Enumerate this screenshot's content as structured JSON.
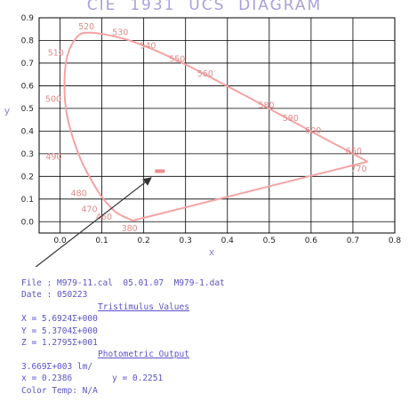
{
  "title": "CIE  1931  UCS  DIAGRAM",
  "colors": {
    "title": "#a9a0d8",
    "curve": "#f4a3a3",
    "wavelength_labels": "#e28a8a",
    "marker": "#f08a8a",
    "info_text": "#5a52c8",
    "axis_letters": "#8c84d6",
    "grid": "#000000",
    "arrow": "#333333"
  },
  "chart_data": {
    "type": "line",
    "title": "CIE  1931  UCS  DIAGRAM",
    "xlabel": "x",
    "ylabel": "y",
    "xlim": [
      -0.05,
      0.8
    ],
    "ylim": [
      -0.05,
      0.9
    ],
    "grid": true,
    "x_ticks": [
      "0.0",
      "0.1",
      "0.2",
      "0.3",
      "0.4",
      "0.5",
      "0.6",
      "0.7",
      "0.8"
    ],
    "y_ticks": [
      "0.0",
      "0.1",
      "0.2",
      "0.3",
      "0.4",
      "0.5",
      "0.6",
      "0.7",
      "0.8",
      "0.9"
    ],
    "spectral_locus": [
      {
        "x": 0.174,
        "y": 0.005
      },
      {
        "x": 0.144,
        "y": 0.03
      },
      {
        "x": 0.124,
        "y": 0.058
      },
      {
        "x": 0.091,
        "y": 0.133
      },
      {
        "x": 0.045,
        "y": 0.295
      },
      {
        "x": 0.014,
        "y": 0.5
      },
      {
        "x": 0.014,
        "y": 0.7
      },
      {
        "x": 0.039,
        "y": 0.812
      },
      {
        "x": 0.074,
        "y": 0.834
      },
      {
        "x": 0.155,
        "y": 0.806
      },
      {
        "x": 0.23,
        "y": 0.754
      },
      {
        "x": 0.302,
        "y": 0.692
      },
      {
        "x": 0.373,
        "y": 0.624
      },
      {
        "x": 0.444,
        "y": 0.555
      },
      {
        "x": 0.513,
        "y": 0.486
      },
      {
        "x": 0.575,
        "y": 0.424
      },
      {
        "x": 0.627,
        "y": 0.372
      },
      {
        "x": 0.666,
        "y": 0.334
      },
      {
        "x": 0.692,
        "y": 0.308
      },
      {
        "x": 0.735,
        "y": 0.265
      }
    ],
    "wavelength_labels": [
      {
        "text": "380",
        "x": 0.166,
        "y": -0.03
      },
      {
        "text": "460",
        "x": 0.105,
        "y": 0.02
      },
      {
        "text": "470",
        "x": 0.07,
        "y": 0.055
      },
      {
        "text": "480",
        "x": 0.045,
        "y": 0.125
      },
      {
        "text": "490",
        "x": -0.015,
        "y": 0.285
      },
      {
        "text": "500",
        "x": -0.016,
        "y": 0.54
      },
      {
        "text": "510",
        "x": -0.01,
        "y": 0.745
      },
      {
        "text": "520",
        "x": 0.063,
        "y": 0.86
      },
      {
        "text": "530",
        "x": 0.144,
        "y": 0.835
      },
      {
        "text": "540",
        "x": 0.21,
        "y": 0.776
      },
      {
        "text": "550",
        "x": 0.28,
        "y": 0.718
      },
      {
        "text": "560",
        "x": 0.347,
        "y": 0.652
      },
      {
        "text": "580",
        "x": 0.493,
        "y": 0.513
      },
      {
        "text": "590",
        "x": 0.551,
        "y": 0.457
      },
      {
        "text": "600",
        "x": 0.605,
        "y": 0.401
      },
      {
        "text": "650",
        "x": 0.702,
        "y": 0.312
      },
      {
        "text": "770",
        "x": 0.714,
        "y": 0.232
      }
    ],
    "measured_point": {
      "x": 0.2386,
      "y": 0.2251
    }
  },
  "info": {
    "file_line": "File : M979-11.cal  05.01.07  M979-1.dat",
    "date_line": "Date : 050223",
    "tristimulus_header": "Tristimulus Values",
    "X": "X = 5.6924Σ+000",
    "Y": "Y = 5.3704Σ+000",
    "Z": "Z = 1.2795Σ+001",
    "photometric_header": "Photometric Output",
    "output": "3.669Σ+003 lm/",
    "x_value": "x = 0.2386",
    "y_value": "y = 0.2251",
    "color_temp": "Color Temp: N/A"
  }
}
